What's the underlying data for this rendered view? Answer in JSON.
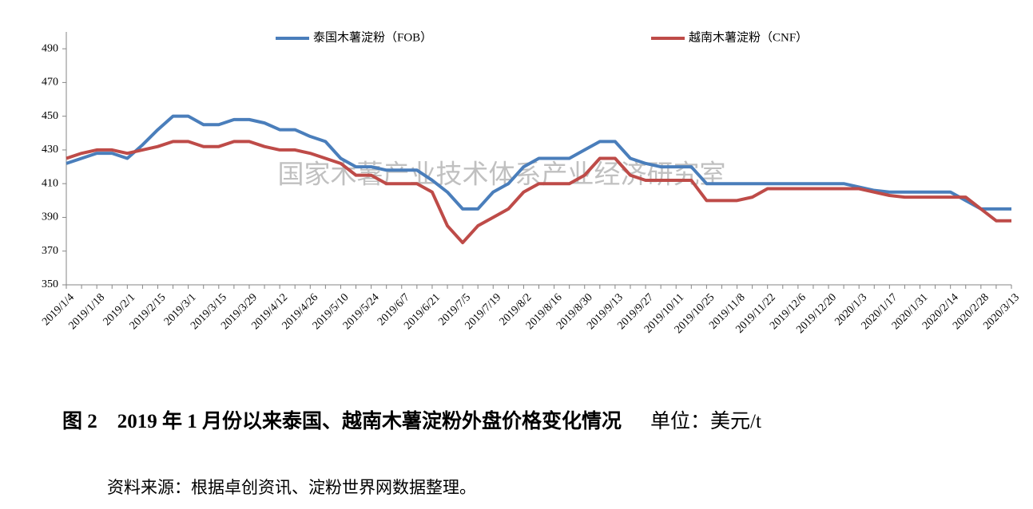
{
  "chart_data": {
    "type": "line",
    "watermark": "国家木薯产业技术体系产业经济研究室",
    "caption": "图 2　2019 年 1 月份以来泰国、越南木薯淀粉外盘价格变化情况",
    "unit": "单位：美元/t",
    "source": "资料来源：根据卓创资讯、淀粉世界网数据整理。",
    "legend": "top",
    "categories": [
      "2019/1/4",
      null,
      "2019/1/18",
      null,
      "2019/2/1",
      null,
      "2019/2/15",
      null,
      "2019/3/1",
      null,
      "2019/3/15",
      null,
      "2019/3/29",
      null,
      "2019/4/12",
      null,
      "2019/4/26",
      null,
      "2019/5/10",
      null,
      "2019/5/24",
      null,
      "2019/6/7",
      null,
      "2019/6/21",
      null,
      "2019/7/5",
      null,
      "2019/7/19",
      null,
      "2019/8/2",
      null,
      "2019/8/16",
      null,
      "2019/8/30",
      null,
      "2019/9/13",
      null,
      "2019/9/27",
      null,
      "2019/10/11",
      null,
      "2019/10/25",
      null,
      "2019/11/8",
      null,
      "2019/11/22",
      null,
      "2019/12/6",
      null,
      "2019/12/20",
      null,
      "2020/1/3",
      null,
      "2020/1/17",
      null,
      "2020/1/31",
      null,
      "2020/2/14",
      null,
      "2020/2/28",
      null,
      "2020/3/13"
    ],
    "series": [
      {
        "name": "泰国木薯淀粉（FOB）",
        "color": "#4a7ebb",
        "values": [
          422,
          425,
          428,
          428,
          425,
          433,
          442,
          450,
          450,
          445,
          445,
          448,
          448,
          446,
          442,
          442,
          438,
          435,
          425,
          420,
          420,
          418,
          418,
          418,
          412,
          405,
          395,
          395,
          405,
          410,
          420,
          425,
          425,
          425,
          430,
          435,
          435,
          425,
          422,
          420,
          420,
          420,
          410,
          410,
          410,
          410,
          410,
          410,
          410,
          410,
          410,
          410,
          408,
          406,
          405,
          405,
          405,
          405,
          405,
          400,
          395,
          395,
          395
        ]
      },
      {
        "name": "越南木薯淀粉（CNF）",
        "color": "#be4b48",
        "values": [
          425,
          428,
          430,
          430,
          428,
          430,
          432,
          435,
          435,
          432,
          432,
          435,
          435,
          432,
          430,
          430,
          428,
          425,
          422,
          415,
          415,
          410,
          410,
          410,
          405,
          385,
          375,
          385,
          390,
          395,
          405,
          410,
          410,
          410,
          415,
          425,
          425,
          415,
          412,
          412,
          412,
          412,
          400,
          400,
          400,
          402,
          407,
          407,
          407,
          407,
          407,
          407,
          407,
          405,
          403,
          402,
          402,
          402,
          402,
          402,
          395,
          388,
          388
        ]
      }
    ],
    "ylim": [
      350,
      500
    ],
    "yticks": [
      350,
      370,
      390,
      410,
      430,
      450,
      470,
      490
    ],
    "grid": false
  }
}
